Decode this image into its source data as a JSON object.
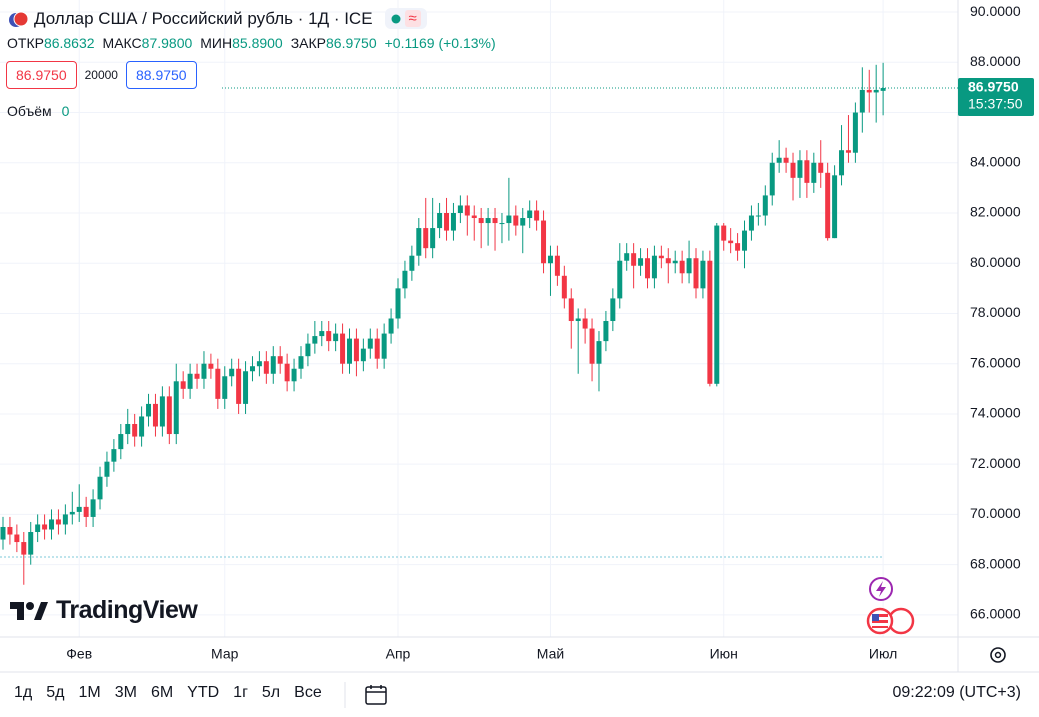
{
  "header": {
    "title": "Доллар США / Российский рубль · 1Д · ICE",
    "ohlc": [
      {
        "label": "ОТКР",
        "value": "86.8632"
      },
      {
        "label": "МАКС",
        "value": "87.9800"
      },
      {
        "label": "МИН",
        "value": "85.8900"
      },
      {
        "label": "ЗАКР",
        "value": "86.9750"
      }
    ],
    "change": "+0.1169 (+0.13%)",
    "sell": "86.9750",
    "quantity": "20000",
    "buy": "88.9750",
    "volume_label": "Объём",
    "volume_value": "0",
    "price_tag": "86.9750",
    "price_time": "15:37:50",
    "logo": "TradingView"
  },
  "toolbar": {
    "ranges": [
      "1д",
      "5д",
      "1М",
      "3М",
      "6М",
      "YTD",
      "1г",
      "5л",
      "Все"
    ],
    "clock": "09:22:09 (UTC+3)"
  },
  "chart_data": {
    "type": "candlestick",
    "up_color": "#089981",
    "down_color": "#f23645",
    "grid": true,
    "ylim": [
      65.12,
      90.48
    ],
    "yticks": [
      {
        "value": 66,
        "label": "66.0000"
      },
      {
        "value": 68,
        "label": "68.0000"
      },
      {
        "value": 70,
        "label": "70.0000"
      },
      {
        "value": 72,
        "label": "72.0000"
      },
      {
        "value": 74,
        "label": "74.0000"
      },
      {
        "value": 76,
        "label": "76.0000"
      },
      {
        "value": 78,
        "label": "78.0000"
      },
      {
        "value": 80,
        "label": "80.0000"
      },
      {
        "value": 82,
        "label": "82.0000"
      },
      {
        "value": 84,
        "label": "84.0000"
      },
      {
        "value": 86,
        "label": "86.0000"
      },
      {
        "value": 88,
        "label": "88.0000"
      },
      {
        "value": 90,
        "label": "90.0000"
      }
    ],
    "categories": [
      null,
      null,
      null,
      null,
      null,
      null,
      null,
      null,
      null,
      null,
      null,
      "Фев",
      null,
      null,
      null,
      null,
      null,
      null,
      null,
      null,
      null,
      null,
      null,
      null,
      null,
      null,
      null,
      null,
      null,
      null,
      null,
      null,
      "Мар",
      null,
      null,
      null,
      null,
      null,
      null,
      null,
      null,
      null,
      null,
      null,
      null,
      null,
      null,
      null,
      null,
      null,
      null,
      null,
      null,
      null,
      null,
      null,
      null,
      "Апр",
      null,
      null,
      null,
      null,
      null,
      null,
      null,
      null,
      null,
      null,
      null,
      null,
      null,
      null,
      null,
      null,
      null,
      null,
      null,
      null,
      null,
      "Май",
      null,
      null,
      null,
      null,
      null,
      null,
      null,
      null,
      null,
      null,
      null,
      null,
      null,
      null,
      null,
      null,
      null,
      null,
      null,
      null,
      null,
      null,
      null,
      null,
      "Июн",
      null,
      null,
      null,
      null,
      null,
      null,
      null,
      null,
      null,
      null,
      null,
      null,
      null,
      null,
      null,
      null,
      null,
      null,
      null,
      null,
      null,
      null,
      "Июл"
    ],
    "open": [
      69.0,
      69.5,
      69.2,
      68.9,
      68.4,
      69.3,
      69.6,
      69.4,
      69.8,
      69.6,
      70.0,
      70.1,
      70.3,
      69.9,
      70.6,
      71.5,
      72.1,
      72.6,
      73.2,
      73.6,
      73.1,
      73.9,
      74.4,
      73.5,
      74.7,
      73.2,
      75.3,
      75.0,
      75.6,
      75.4,
      76.0,
      75.8,
      74.6,
      75.5,
      75.8,
      74.4,
      75.7,
      75.9,
      76.1,
      75.6,
      76.3,
      76.0,
      75.3,
      75.8,
      76.3,
      76.8,
      77.1,
      77.3,
      76.9,
      77.2,
      76.0,
      77.0,
      76.1,
      76.6,
      77.0,
      76.2,
      77.2,
      77.8,
      79.0,
      79.7,
      80.3,
      81.4,
      80.6,
      81.4,
      82.0,
      81.3,
      82.0,
      82.3,
      81.9,
      81.8,
      81.6,
      81.8,
      81.6,
      81.6,
      81.9,
      81.5,
      81.8,
      82.1,
      81.7,
      80.0,
      80.3,
      79.5,
      78.6,
      77.7,
      77.8,
      77.4,
      76.0,
      76.9,
      77.7,
      78.6,
      80.1,
      80.4,
      79.9,
      80.2,
      79.4,
      80.3,
      80.2,
      80.0,
      80.1,
      79.6,
      80.2,
      79.0,
      80.1,
      75.2,
      81.5,
      80.9,
      80.8,
      80.5,
      81.3,
      81.9,
      81.9,
      82.7,
      84.0,
      84.2,
      84.0,
      83.4,
      84.1,
      83.2,
      84.0,
      83.6,
      81.0,
      83.5,
      84.5,
      84.4,
      86.0,
      86.9,
      86.8,
      86.8632
    ],
    "high": [
      69.9,
      69.9,
      69.6,
      69.3,
      69.7,
      70.0,
      70.0,
      70.2,
      70.2,
      70.4,
      70.9,
      71.2,
      70.7,
      71.0,
      71.9,
      72.5,
      73.0,
      73.6,
      74.2,
      74.0,
      74.3,
      74.8,
      74.8,
      75.1,
      75.1,
      76.0,
      75.7,
      76.0,
      76.0,
      76.5,
      76.4,
      76.2,
      75.9,
      76.2,
      76.2,
      76.1,
      76.3,
      76.5,
      76.5,
      76.7,
      76.7,
      76.4,
      76.2,
      76.7,
      77.2,
      77.7,
      77.7,
      77.7,
      77.6,
      77.6,
      77.4,
      77.4,
      77.0,
      77.4,
      77.4,
      77.6,
      78.2,
      79.4,
      80.1,
      80.7,
      81.8,
      82.6,
      82.6,
      82.4,
      82.6,
      82.4,
      82.7,
      82.7,
      82.3,
      82.2,
      82.2,
      82.2,
      82.0,
      83.4,
      82.3,
      82.2,
      82.5,
      82.5,
      82.1,
      80.7,
      80.7,
      79.9,
      79.0,
      78.2,
      78.2,
      77.8,
      77.3,
      78.1,
      79.0,
      80.8,
      80.8,
      80.8,
      80.6,
      80.6,
      80.7,
      80.7,
      80.6,
      80.5,
      80.5,
      80.9,
      80.6,
      80.5,
      80.5,
      81.6,
      81.6,
      81.4,
      81.2,
      81.7,
      82.3,
      82.4,
      83.1,
      84.4,
      84.9,
      84.6,
      84.4,
      84.5,
      84.5,
      84.4,
      84.9,
      84.0,
      83.9,
      85.5,
      85.9,
      86.4,
      87.8,
      87.7,
      87.9,
      87.98
    ],
    "low": [
      68.6,
      68.8,
      68.5,
      67.2,
      68.0,
      68.9,
      69.0,
      69.0,
      69.2,
      69.2,
      69.6,
      69.7,
      69.5,
      69.5,
      70.2,
      71.1,
      71.7,
      72.2,
      72.8,
      72.7,
      72.7,
      73.5,
      73.1,
      73.1,
      72.8,
      72.8,
      74.6,
      74.6,
      75.0,
      75.0,
      75.4,
      74.2,
      74.2,
      75.1,
      74.0,
      74.0,
      75.3,
      75.5,
      75.2,
      75.2,
      75.6,
      74.9,
      74.9,
      75.4,
      75.9,
      76.4,
      76.7,
      76.5,
      76.5,
      75.6,
      75.6,
      75.5,
      75.7,
      76.2,
      75.8,
      75.8,
      76.8,
      77.4,
      78.6,
      79.3,
      79.9,
      80.2,
      80.2,
      81.0,
      80.9,
      80.9,
      81.6,
      81.1,
      80.9,
      80.6,
      80.7,
      80.5,
      80.8,
      80.9,
      81.1,
      80.4,
      81.4,
      81.3,
      79.6,
      78.7,
      79.1,
      78.2,
      76.6,
      75.6,
      76.8,
      75.3,
      74.9,
      76.5,
      77.3,
      78.2,
      79.7,
      79.0,
      79.5,
      79.0,
      79.0,
      79.8,
      79.2,
      79.6,
      79.2,
      79.2,
      78.6,
      78.6,
      75.1,
      75.1,
      80.5,
      80.4,
      80.1,
      79.8,
      80.9,
      81.5,
      81.5,
      82.3,
      83.6,
      83.6,
      82.5,
      82.6,
      82.6,
      82.8,
      83.0,
      80.9,
      81.0,
      83.1,
      84.0,
      84.0,
      85.2,
      86.0,
      85.6,
      85.89
    ],
    "close": [
      69.5,
      69.2,
      68.9,
      68.4,
      69.3,
      69.6,
      69.4,
      69.8,
      69.6,
      70.0,
      70.1,
      70.3,
      69.9,
      70.6,
      71.5,
      72.1,
      72.6,
      73.2,
      73.6,
      73.1,
      73.9,
      74.4,
      73.5,
      74.7,
      73.2,
      75.3,
      75.0,
      75.6,
      75.4,
      76.0,
      75.8,
      74.6,
      75.5,
      75.8,
      74.4,
      75.7,
      75.9,
      76.1,
      75.6,
      76.3,
      76.0,
      75.3,
      75.8,
      76.3,
      76.8,
      77.1,
      77.3,
      76.9,
      77.2,
      76.0,
      77.0,
      76.1,
      76.6,
      77.0,
      76.2,
      77.2,
      77.8,
      79.0,
      79.7,
      80.3,
      81.4,
      80.6,
      81.4,
      82.0,
      81.3,
      82.0,
      82.3,
      81.9,
      81.8,
      81.6,
      81.8,
      81.6,
      81.6,
      81.9,
      81.5,
      81.8,
      82.1,
      81.7,
      80.0,
      80.3,
      79.5,
      78.6,
      77.7,
      77.8,
      77.4,
      76.0,
      76.9,
      77.7,
      78.6,
      80.1,
      80.4,
      79.9,
      80.2,
      79.4,
      80.3,
      80.2,
      80.0,
      80.1,
      79.6,
      80.2,
      79.0,
      80.1,
      75.2,
      81.5,
      80.9,
      80.8,
      80.5,
      81.3,
      81.9,
      81.9,
      82.7,
      84.0,
      84.2,
      84.0,
      83.4,
      84.1,
      83.2,
      84.0,
      83.6,
      81.0,
      83.5,
      84.5,
      84.4,
      86.0,
      86.9,
      86.8,
      86.9,
      86.975
    ]
  }
}
